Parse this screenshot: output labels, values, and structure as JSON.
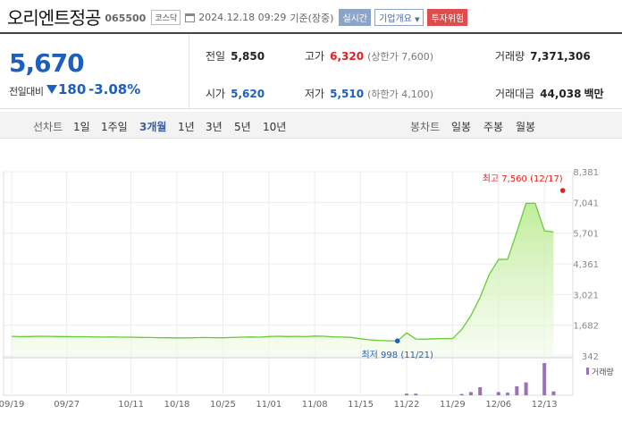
{
  "header": {
    "name": "오리엔트정공",
    "code": "065500",
    "market": "코스닥",
    "datetime": "2024.12.18 09:29",
    "datetime_suffix": "기준(장중)",
    "realtime_label": "실시간",
    "company_label": "기업개요",
    "warning_label": "투자위험"
  },
  "quote": {
    "price": "5,670",
    "change_label": "전일대비",
    "change": "180",
    "change_pct": "-3.08%",
    "direction": "down",
    "prev_label": "전일",
    "prev": "5,850",
    "high_label": "고가",
    "high": "6,320",
    "upper_limit": "(상한가 7,600)",
    "volume_label": "거래량",
    "volume": "7,371,306",
    "open_label": "시가",
    "open": "5,620",
    "low_label": "저가",
    "low": "5,510",
    "lower_limit": "(하한가 4,100)",
    "amount_label": "거래대금",
    "amount": "44,038",
    "amount_unit": "백만"
  },
  "tabs": {
    "line_label": "선차트",
    "line": [
      "1일",
      "1주일",
      "3개월",
      "1년",
      "3년",
      "5년",
      "10년"
    ],
    "line_active": "3개월",
    "candle_label": "봉차트",
    "candle": [
      "일봉",
      "주봉",
      "월봉"
    ]
  },
  "colors": {
    "down": "#1d5fbf",
    "up": "#e02020",
    "line": "#66cc33",
    "fill": "#d6f3bd",
    "volume": "#9b72b8"
  },
  "chart_data": {
    "type": "area",
    "title": "",
    "xlabel": "",
    "ylabel": "",
    "ylim": [
      342,
      8381
    ],
    "yticks": [
      "8,381",
      "7,041",
      "5,701",
      "4,361",
      "3,021",
      "1,682",
      "342"
    ],
    "xticks": [
      "09/19",
      "09/27",
      "10/11",
      "10/18",
      "10/25",
      "11/01",
      "11/08",
      "11/15",
      "11/22",
      "11/29",
      "12/06",
      "12/13"
    ],
    "x": [
      "09/19",
      "09/20",
      "09/23",
      "09/24",
      "09/25",
      "09/26",
      "09/27",
      "09/30",
      "10/02",
      "10/04",
      "10/07",
      "10/08",
      "10/10",
      "10/11",
      "10/14",
      "10/15",
      "10/16",
      "10/17",
      "10/18",
      "10/21",
      "10/22",
      "10/23",
      "10/24",
      "10/25",
      "10/28",
      "10/29",
      "10/30",
      "10/31",
      "11/01",
      "11/04",
      "11/05",
      "11/06",
      "11/07",
      "11/08",
      "11/11",
      "11/12",
      "11/13",
      "11/14",
      "11/15",
      "11/18",
      "11/19",
      "11/20",
      "11/21",
      "11/22",
      "11/25",
      "11/26",
      "11/27",
      "11/28",
      "11/29",
      "12/02",
      "12/03",
      "12/04",
      "12/05",
      "12/06",
      "12/09",
      "12/10",
      "12/11",
      "12/12",
      "12/13",
      "12/16",
      "12/17",
      "12/18"
    ],
    "price": [
      1195,
      1185,
      1190,
      1200,
      1195,
      1190,
      1185,
      1180,
      1180,
      1170,
      1165,
      1170,
      1160,
      1160,
      1150,
      1145,
      1140,
      1135,
      1130,
      1130,
      1140,
      1145,
      1140,
      1135,
      1150,
      1160,
      1170,
      1160,
      1190,
      1200,
      1190,
      1195,
      1185,
      1210,
      1200,
      1175,
      1165,
      1150,
      1090,
      1045,
      1020,
      1000,
      998,
      1350,
      1080,
      1070,
      1090,
      1100,
      1100,
      1500,
      2100,
      2900,
      3900,
      4550,
      4560,
      5750,
      7000,
      7000,
      5800,
      5750,
      null,
      null
    ],
    "volume": [
      0,
      0,
      0,
      0,
      0,
      0,
      0,
      0,
      0,
      0,
      0,
      0,
      0,
      0,
      0,
      0,
      0,
      0,
      0,
      0,
      0,
      0,
      0,
      0,
      0,
      0,
      0,
      0,
      0,
      0,
      0,
      0,
      0,
      0,
      0,
      0,
      0,
      0,
      0,
      0,
      0,
      0,
      0,
      0.05,
      0.05,
      0,
      0,
      0,
      0,
      0.04,
      0.1,
      0.25,
      0,
      0.1,
      0.08,
      0.28,
      0.4,
      0,
      1.0,
      0.12,
      0,
      0
    ],
    "volume_label": "거래량",
    "high_annotation": "최고 7,560 (12/17)",
    "high_value": 7560,
    "high_date": "12/17",
    "low_annotation": "최저 998 (11/21)",
    "low_value": 998,
    "low_date": "11/21"
  }
}
